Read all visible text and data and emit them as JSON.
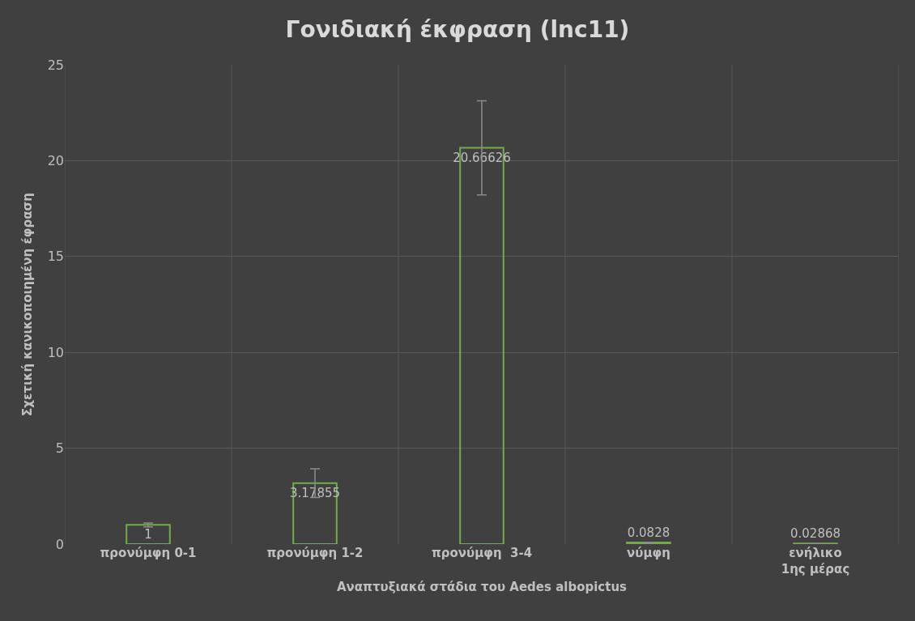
{
  "chart_data": {
    "type": "bar",
    "title": "Γονιδιακή έκφραση (lnc11)",
    "xlabel": "Αναπτυξιακά στάδια του Aedes albopictus",
    "ylabel": "Σχετική κανικοποιημένη έφραση",
    "categories": [
      "προνύμφη 0-1",
      "προνύμφη 1-2",
      "προνύμφη  3-4",
      "νύμφη",
      "ενήλικο\n1ης μέρας"
    ],
    "values": [
      1,
      3.17855,
      20.66626,
      0.0828,
      0.02868
    ],
    "errors": [
      0.1,
      0.75,
      2.45,
      0.01,
      0.005
    ],
    "color": "#70ad47",
    "data_labels": true,
    "ylim": [
      0,
      25
    ],
    "yticks": [
      0,
      5,
      10,
      15,
      20,
      25
    ],
    "grid": true
  }
}
